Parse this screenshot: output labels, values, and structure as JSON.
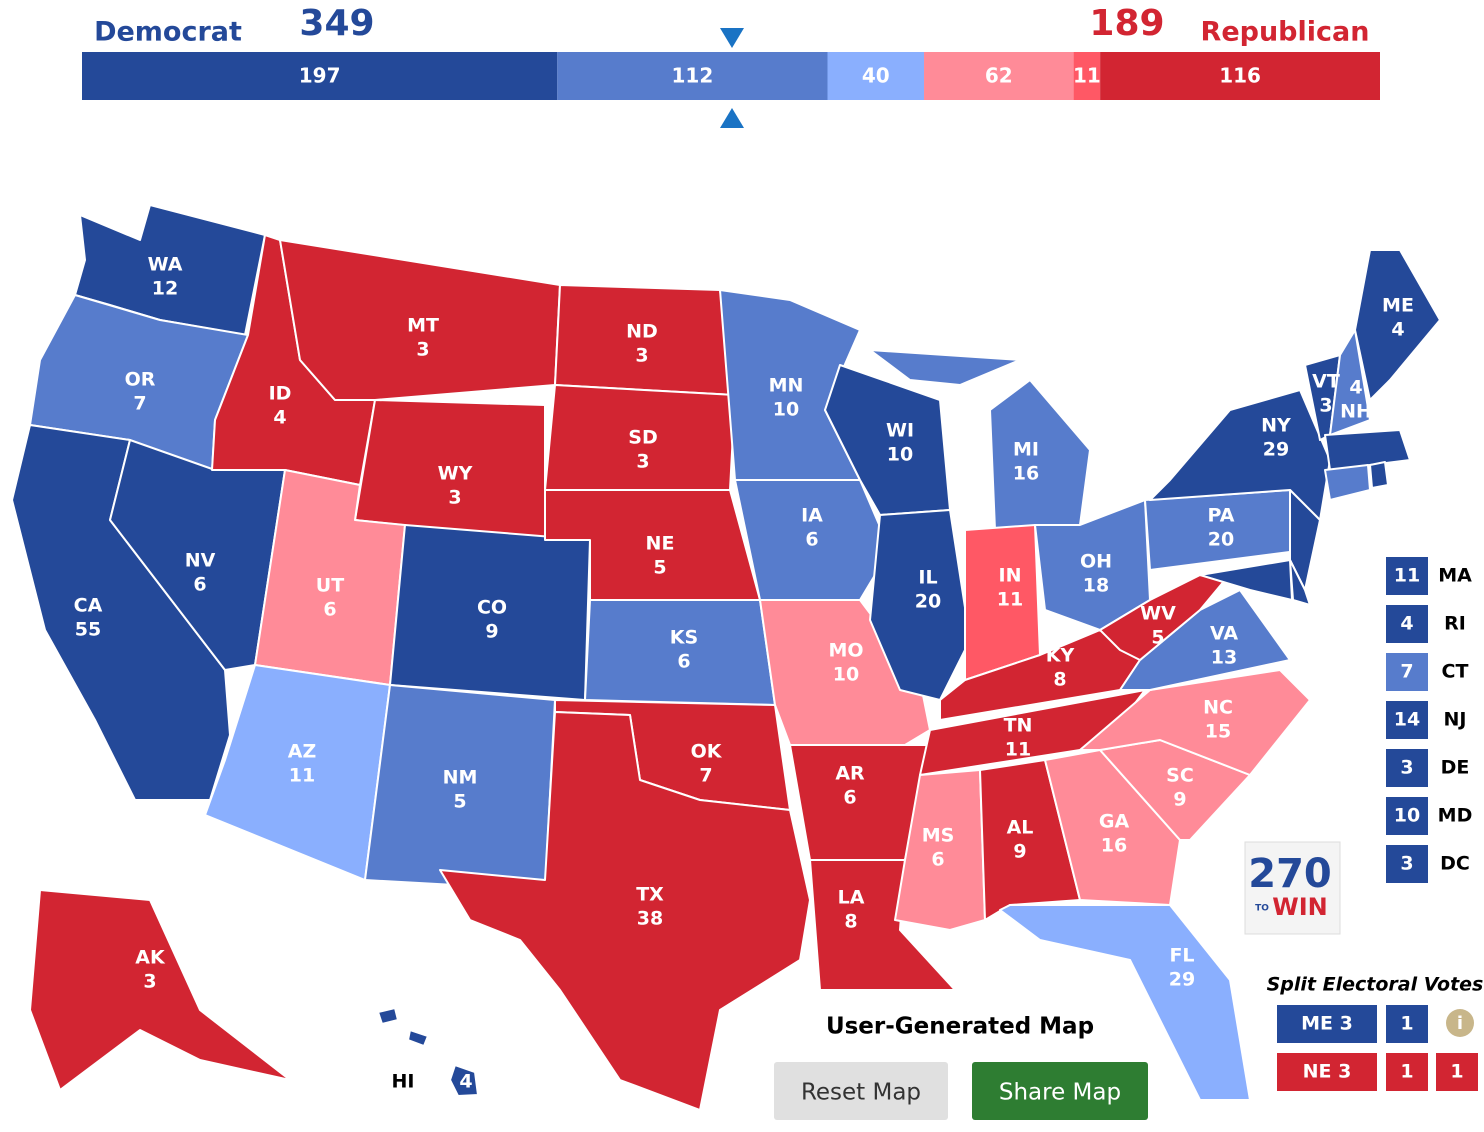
{
  "header": {
    "dem_label": "Democrat",
    "dem_total": 349,
    "rep_label": "Republican",
    "rep_total": 189
  },
  "bar": {
    "segments": [
      {
        "value": 197,
        "color": "#244999"
      },
      {
        "value": 112,
        "color": "#577ccc"
      },
      {
        "value": 40,
        "color": "#8aaffe"
      },
      {
        "value": 62,
        "color": "#ff8b98"
      },
      {
        "value": 11,
        "color": "#ff5865"
      },
      {
        "value": 116,
        "color": "#d22532"
      }
    ]
  },
  "states": [
    {
      "abbr": "WA",
      "ev": 12,
      "rating": 0
    },
    {
      "abbr": "OR",
      "ev": 7,
      "rating": 1
    },
    {
      "abbr": "CA",
      "ev": 55,
      "rating": 0
    },
    {
      "abbr": "NV",
      "ev": 6,
      "rating": 0
    },
    {
      "abbr": "ID",
      "ev": 4,
      "rating": 5
    },
    {
      "abbr": "MT",
      "ev": 3,
      "rating": 5
    },
    {
      "abbr": "WY",
      "ev": 3,
      "rating": 5
    },
    {
      "abbr": "UT",
      "ev": 6,
      "rating": 3
    },
    {
      "abbr": "CO",
      "ev": 9,
      "rating": 0
    },
    {
      "abbr": "AZ",
      "ev": 11,
      "rating": 2
    },
    {
      "abbr": "NM",
      "ev": 5,
      "rating": 1
    },
    {
      "abbr": "ND",
      "ev": 3,
      "rating": 5
    },
    {
      "abbr": "SD",
      "ev": 3,
      "rating": 5
    },
    {
      "abbr": "NE",
      "ev": 5,
      "rating": 5
    },
    {
      "abbr": "KS",
      "ev": 6,
      "rating": 1
    },
    {
      "abbr": "OK",
      "ev": 7,
      "rating": 5
    },
    {
      "abbr": "TX",
      "ev": 38,
      "rating": 5
    },
    {
      "abbr": "MN",
      "ev": 10,
      "rating": 1
    },
    {
      "abbr": "IA",
      "ev": 6,
      "rating": 1
    },
    {
      "abbr": "MO",
      "ev": 10,
      "rating": 3
    },
    {
      "abbr": "AR",
      "ev": 6,
      "rating": 5
    },
    {
      "abbr": "LA",
      "ev": 8,
      "rating": 5
    },
    {
      "abbr": "WI",
      "ev": 10,
      "rating": 0
    },
    {
      "abbr": "IL",
      "ev": 20,
      "rating": 0
    },
    {
      "abbr": "MI",
      "ev": 16,
      "rating": 1
    },
    {
      "abbr": "IN",
      "ev": 11,
      "rating": 4
    },
    {
      "abbr": "OH",
      "ev": 18,
      "rating": 1
    },
    {
      "abbr": "KY",
      "ev": 8,
      "rating": 5
    },
    {
      "abbr": "TN",
      "ev": 11,
      "rating": 5
    },
    {
      "abbr": "MS",
      "ev": 6,
      "rating": 3
    },
    {
      "abbr": "AL",
      "ev": 9,
      "rating": 5
    },
    {
      "abbr": "GA",
      "ev": 16,
      "rating": 3
    },
    {
      "abbr": "FL",
      "ev": 29,
      "rating": 2
    },
    {
      "abbr": "SC",
      "ev": 9,
      "rating": 3
    },
    {
      "abbr": "NC",
      "ev": 15,
      "rating": 3
    },
    {
      "abbr": "VA",
      "ev": 13,
      "rating": 1
    },
    {
      "abbr": "WV",
      "ev": 5,
      "rating": 5
    },
    {
      "abbr": "PA",
      "ev": 20,
      "rating": 1
    },
    {
      "abbr": "NY",
      "ev": 29,
      "rating": 0
    },
    {
      "abbr": "VT",
      "ev": 3,
      "rating": 0
    },
    {
      "abbr": "NH",
      "ev": 4,
      "rating": 1
    },
    {
      "abbr": "ME",
      "ev": 4,
      "rating": 0
    },
    {
      "abbr": "AK",
      "ev": 3,
      "rating": 5
    },
    {
      "abbr": "HI",
      "ev": 4,
      "rating": 0
    }
  ],
  "small_states": [
    {
      "ev": 11,
      "abbr": "MA",
      "rating": 0
    },
    {
      "ev": 4,
      "abbr": "RI",
      "rating": 0
    },
    {
      "ev": 7,
      "abbr": "CT",
      "rating": 1
    },
    {
      "ev": 14,
      "abbr": "NJ",
      "rating": 0
    },
    {
      "ev": 3,
      "abbr": "DE",
      "rating": 0
    },
    {
      "ev": 10,
      "abbr": "MD",
      "rating": 0
    },
    {
      "ev": 3,
      "abbr": "DC",
      "rating": 0
    }
  ],
  "logo": {
    "number": "270",
    "small": "TO",
    "word": "WIN"
  },
  "map_title": "User-Generated Map",
  "buttons": {
    "reset": "Reset Map",
    "share": "Share Map"
  },
  "split": {
    "title": "Split Electoral Votes",
    "me": {
      "label": "ME 3",
      "votes": [
        1
      ]
    },
    "ne": {
      "label": "NE 3",
      "votes": [
        1,
        1
      ]
    }
  }
}
